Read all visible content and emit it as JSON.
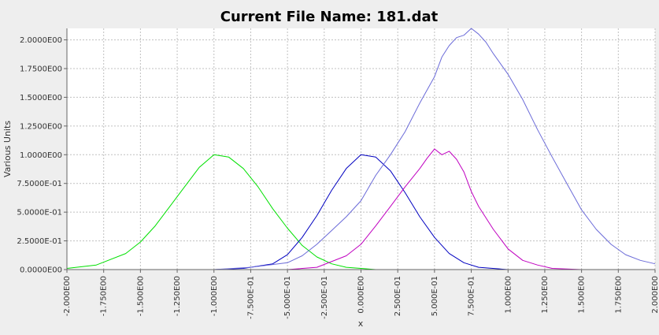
{
  "chart_data": {
    "type": "line",
    "title": "Current File Name: 181.dat",
    "xlabel": "x",
    "ylabel": "Various Units",
    "xlim": [
      -2.0,
      2.0
    ],
    "ylim": [
      0.0,
      2.1
    ],
    "grid": true,
    "x_ticks": [
      -2.0,
      -1.75,
      -1.5,
      -1.25,
      -1.0,
      -0.75,
      -0.5,
      -0.25,
      0.0,
      0.25,
      0.5,
      0.75,
      1.0,
      1.25,
      1.5,
      1.75,
      2.0
    ],
    "x_tick_labels": [
      "-2.000E00",
      "-1.750E00",
      "-1.500E00",
      "-1.250E00",
      "-1.000E00",
      "-7.500E-01",
      "-5.000E-01",
      "-2.500E-01",
      "0.000E00",
      "2.500E-01",
      "5.000E-01",
      "7.500E-01",
      "1.000E00",
      "1.250E00",
      "1.500E00",
      "1.750E00",
      "2.000E00"
    ],
    "y_ticks": [
      0.0,
      0.25,
      0.5,
      0.75,
      1.0,
      1.25,
      1.5,
      1.75,
      2.0
    ],
    "y_tick_labels": [
      "0.0000E00",
      "2.5000E-01",
      "5.0000E-01",
      "7.5000E-01",
      "1.0000E00",
      "1.2500E00",
      "1.5000E00",
      "1.7500E00",
      "2.0000E00"
    ],
    "series": [
      {
        "color": "#00e000",
        "x": [
          -2.0,
          -1.8,
          -1.6,
          -1.5,
          -1.4,
          -1.3,
          -1.2,
          -1.1,
          -1.0,
          -0.9,
          -0.8,
          -0.7,
          -0.6,
          -0.5,
          -0.4,
          -0.3,
          -0.2,
          -0.1,
          0.0,
          0.1,
          0.2,
          0.3
        ],
        "y": [
          0.01,
          0.04,
          0.14,
          0.24,
          0.38,
          0.55,
          0.72,
          0.89,
          1.0,
          0.98,
          0.88,
          0.72,
          0.53,
          0.36,
          0.21,
          0.11,
          0.05,
          0.02,
          0.01,
          0.0,
          0.0,
          0.0
        ]
      },
      {
        "color": "#0000c0",
        "x": [
          -1.4,
          -1.2,
          -1.0,
          -0.8,
          -0.6,
          -0.5,
          -0.4,
          -0.3,
          -0.2,
          -0.1,
          0.0,
          0.1,
          0.2,
          0.3,
          0.4,
          0.5,
          0.6,
          0.7,
          0.8,
          1.0,
          1.2,
          1.4
        ],
        "y": [
          0.0,
          0.0,
          0.0,
          0.01,
          0.05,
          0.13,
          0.28,
          0.47,
          0.69,
          0.88,
          1.0,
          0.98,
          0.86,
          0.67,
          0.46,
          0.28,
          0.14,
          0.06,
          0.02,
          0.0,
          0.0,
          0.0
        ]
      },
      {
        "color": "#6a6ad8",
        "x": [
          -1.0,
          -0.75,
          -0.5,
          -0.4,
          -0.3,
          -0.2,
          -0.1,
          0.0,
          0.1,
          0.2,
          0.3,
          0.4,
          0.5,
          0.55,
          0.6,
          0.65,
          0.7,
          0.75,
          0.8,
          0.85,
          0.9,
          1.0,
          1.1,
          1.2,
          1.3,
          1.4,
          1.5,
          1.6,
          1.7,
          1.8,
          1.9,
          2.0
        ],
        "y": [
          0.0,
          0.02,
          0.06,
          0.12,
          0.22,
          0.34,
          0.46,
          0.6,
          0.82,
          1.0,
          1.2,
          1.45,
          1.68,
          1.85,
          1.95,
          2.02,
          2.04,
          2.1,
          2.05,
          1.98,
          1.88,
          1.7,
          1.48,
          1.22,
          0.98,
          0.75,
          0.52,
          0.35,
          0.22,
          0.13,
          0.08,
          0.05
        ]
      },
      {
        "color": "#c000c0",
        "x": [
          -0.5,
          -0.3,
          -0.1,
          0.0,
          0.1,
          0.2,
          0.3,
          0.4,
          0.45,
          0.5,
          0.55,
          0.6,
          0.65,
          0.7,
          0.75,
          0.8,
          0.9,
          1.0,
          1.1,
          1.2,
          1.3,
          1.5,
          1.8
        ],
        "y": [
          0.0,
          0.02,
          0.12,
          0.22,
          0.38,
          0.55,
          0.72,
          0.88,
          0.97,
          1.05,
          1.0,
          1.03,
          0.96,
          0.85,
          0.68,
          0.55,
          0.35,
          0.18,
          0.08,
          0.04,
          0.01,
          0.0,
          0.0
        ]
      }
    ]
  }
}
